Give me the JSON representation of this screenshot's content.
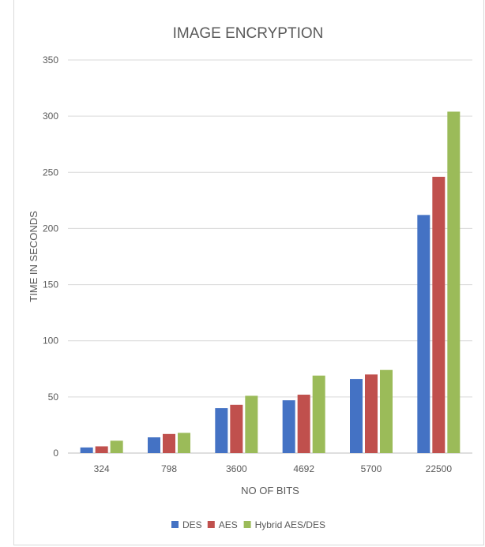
{
  "chart_data": {
    "type": "bar",
    "title": "IMAGE ENCRYPTION",
    "xlabel": "NO OF BITS",
    "ylabel": "TIME IN SECONDS",
    "categories": [
      "324",
      "798",
      "3600",
      "4692",
      "5700",
      "22500"
    ],
    "series": [
      {
        "name": "DES",
        "color": "#4472c4",
        "values": [
          5,
          14,
          40,
          47,
          66,
          212
        ]
      },
      {
        "name": "AES",
        "color": "#c0504d",
        "values": [
          6,
          17,
          43,
          52,
          70,
          246
        ]
      },
      {
        "name": "Hybrid AES/DES",
        "color": "#9bbb59",
        "values": [
          11,
          18,
          51,
          69,
          74,
          304
        ]
      }
    ],
    "ylim": [
      0,
      350
    ],
    "yticks": [
      0,
      50,
      100,
      150,
      200,
      250,
      300,
      350
    ],
    "grid": true,
    "legend_position": "bottom"
  }
}
